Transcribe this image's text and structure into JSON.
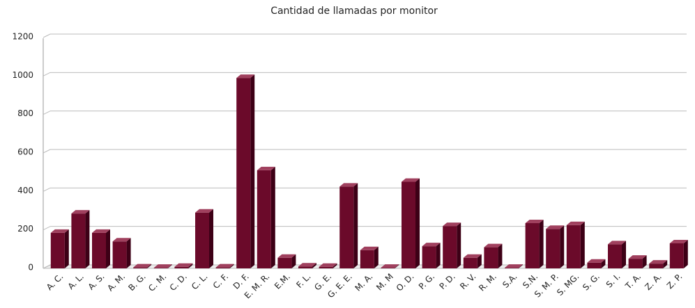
{
  "chart_data": {
    "type": "bar",
    "title": "Cantidad de llamadas por monitor",
    "categories": [
      "A. C.",
      "A. L.",
      "A. S.",
      "A. M.",
      "B. G.",
      "C. M.",
      "C. D.",
      "C. L.",
      "C. F.",
      "D. F.",
      "E. M. R.",
      "E.M.",
      "F. L.",
      "G. E.",
      "G. E. E.",
      "M. A.",
      "M. M",
      "O. D.",
      "P. G.",
      "P. D.",
      "R. V.",
      "R. M.",
      "S.A.",
      "S.N.",
      "S. M. P.",
      "S. MG.",
      "S. G.",
      "S. I.",
      "T. A.",
      "Z. A.",
      "Z. P."
    ],
    "values": [
      185,
      285,
      185,
      140,
      5,
      3,
      8,
      290,
      5,
      990,
      510,
      55,
      10,
      8,
      425,
      95,
      3,
      450,
      115,
      220,
      55,
      110,
      3,
      235,
      205,
      225,
      30,
      125,
      50,
      25,
      130
    ],
    "color": "#6b0a2a",
    "ylim": [
      0,
      1200
    ],
    "yticks": [
      0,
      200,
      400,
      600,
      800,
      1000,
      1200
    ],
    "grid": true
  }
}
